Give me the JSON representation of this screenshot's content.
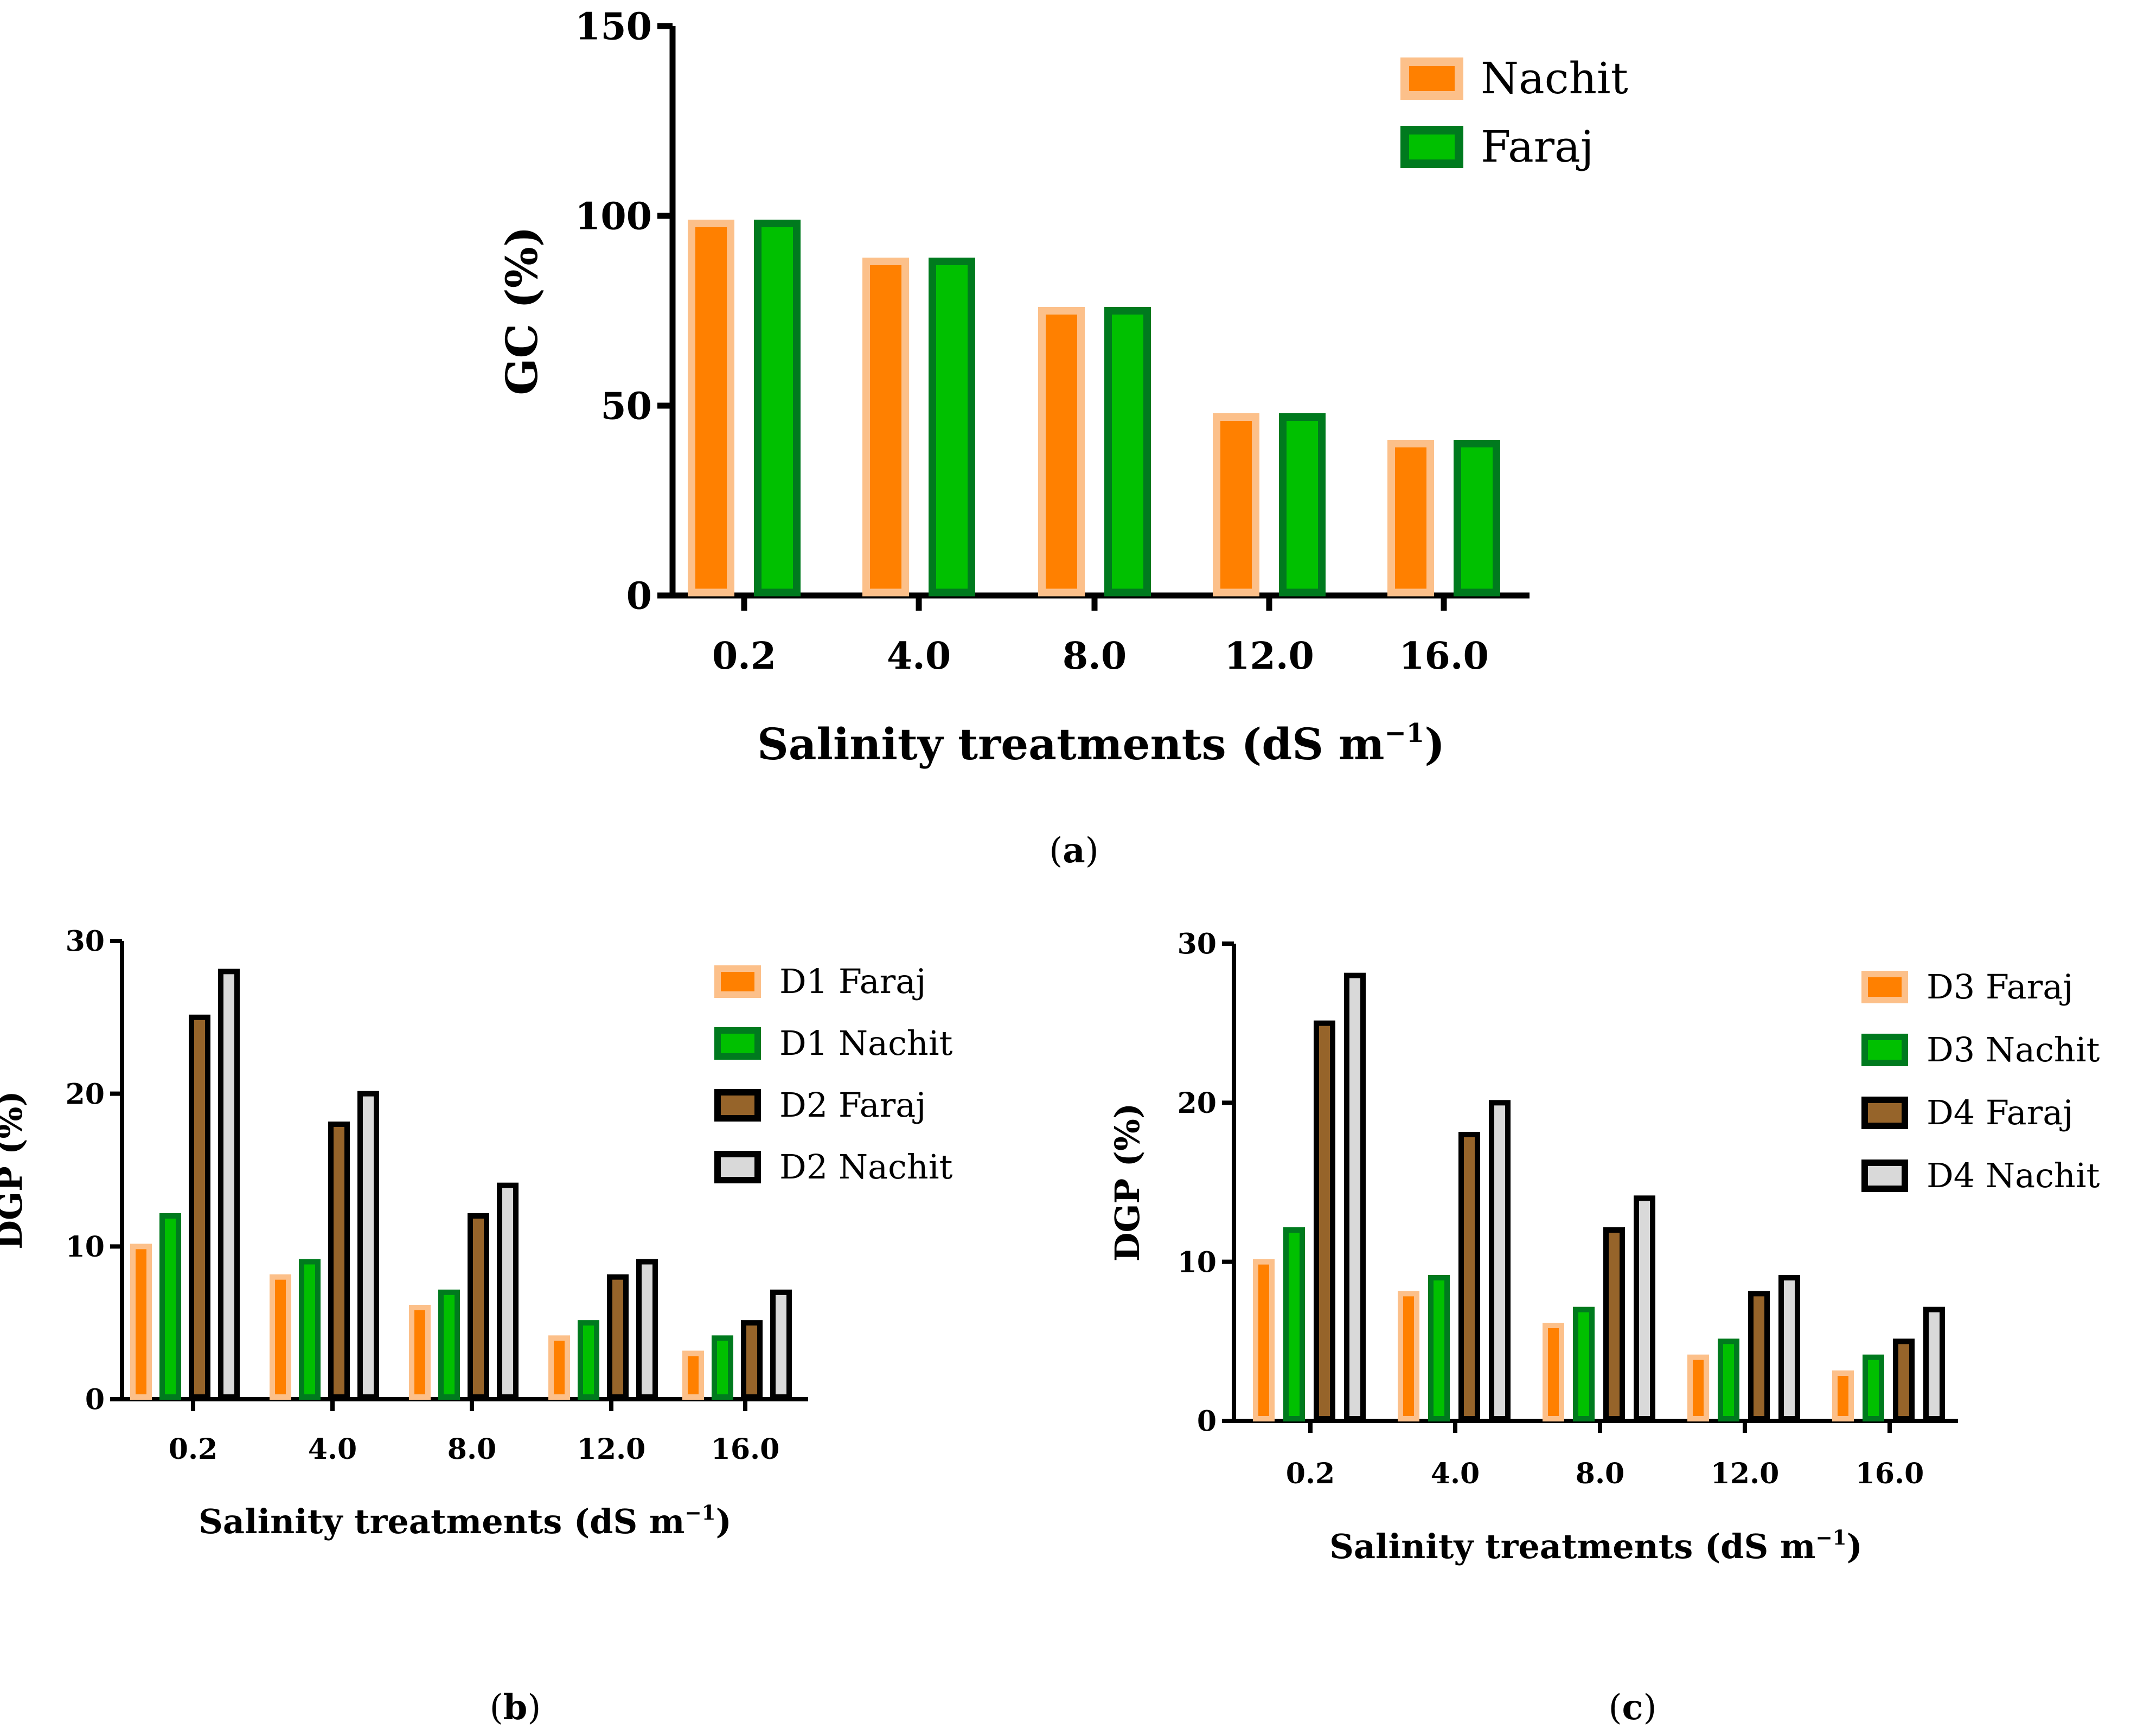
{
  "panel_labels": {
    "a": {
      "open": "(",
      "letter": "a",
      "close": ")"
    },
    "b": {
      "open": "(",
      "letter": "b",
      "close": ")"
    },
    "c": {
      "open": "(",
      "letter": "c",
      "close": ")"
    }
  },
  "colors": {
    "orange_fill": "#ff8000",
    "orange_edge": "#fcc08a",
    "green_fill": "#00c000",
    "green_edge": "#007a1e",
    "brown_fill": "#96642a",
    "brown_edge": "#000000",
    "gray_fill": "#d9d9d9",
    "gray_edge": "#000000"
  },
  "chart_data": [
    {
      "id": "a",
      "type": "bar",
      "categories": [
        "0.2",
        "4.0",
        "8.0",
        "12.0",
        "16.0"
      ],
      "series": [
        {
          "name": "Nachit",
          "values": [
            98,
            88,
            75,
            47,
            40
          ]
        },
        {
          "name": "Faraj",
          "values": [
            98,
            88,
            75,
            47,
            40
          ]
        }
      ],
      "xlabel": {
        "main": "Salinity treatments (dS m",
        "sup": "−1",
        "end": ")"
      },
      "ylabel": "GC (%)",
      "ylim": [
        0,
        150
      ],
      "yticks": [
        "0",
        "50",
        "100",
        "150"
      ],
      "legend_position": "top-right"
    },
    {
      "id": "b",
      "type": "bar",
      "categories": [
        "0.2",
        "4.0",
        "8.0",
        "12.0",
        "16.0"
      ],
      "series": [
        {
          "name": "D1 Faraj",
          "values": [
            10,
            8,
            6,
            4,
            3
          ]
        },
        {
          "name": "D1 Nachit",
          "values": [
            12,
            9,
            7,
            5,
            4
          ]
        },
        {
          "name": "D2 Faraj",
          "values": [
            25,
            18,
            12,
            8,
            5
          ]
        },
        {
          "name": "D2 Nachit",
          "values": [
            28,
            20,
            14,
            9,
            7
          ]
        }
      ],
      "xlabel": {
        "main": "Salinity treatments (dS m",
        "sup": "−1",
        "end": ")"
      },
      "ylabel": "DGP (%)",
      "ylim": [
        0,
        30
      ],
      "yticks": [
        "0",
        "10",
        "20",
        "30"
      ],
      "legend_position": "top-right"
    },
    {
      "id": "c",
      "type": "bar",
      "categories": [
        "0.2",
        "4.0",
        "8.0",
        "12.0",
        "16.0"
      ],
      "series": [
        {
          "name": "D3 Faraj",
          "values": [
            10,
            8,
            6,
            4,
            3
          ]
        },
        {
          "name": "D3 Nachit",
          "values": [
            12,
            9,
            7,
            5,
            4
          ]
        },
        {
          "name": "D4 Faraj",
          "values": [
            25,
            18,
            12,
            8,
            5
          ]
        },
        {
          "name": "D4 Nachit",
          "values": [
            28,
            20,
            14,
            9,
            7
          ]
        }
      ],
      "xlabel": {
        "main": "Salinity treatments (dS m",
        "sup": "−1",
        "end": ")"
      },
      "ylabel": "DGP (%)",
      "ylim": [
        0,
        30
      ],
      "yticks": [
        "0",
        "10",
        "20",
        "30"
      ],
      "legend_position": "top-right"
    }
  ]
}
